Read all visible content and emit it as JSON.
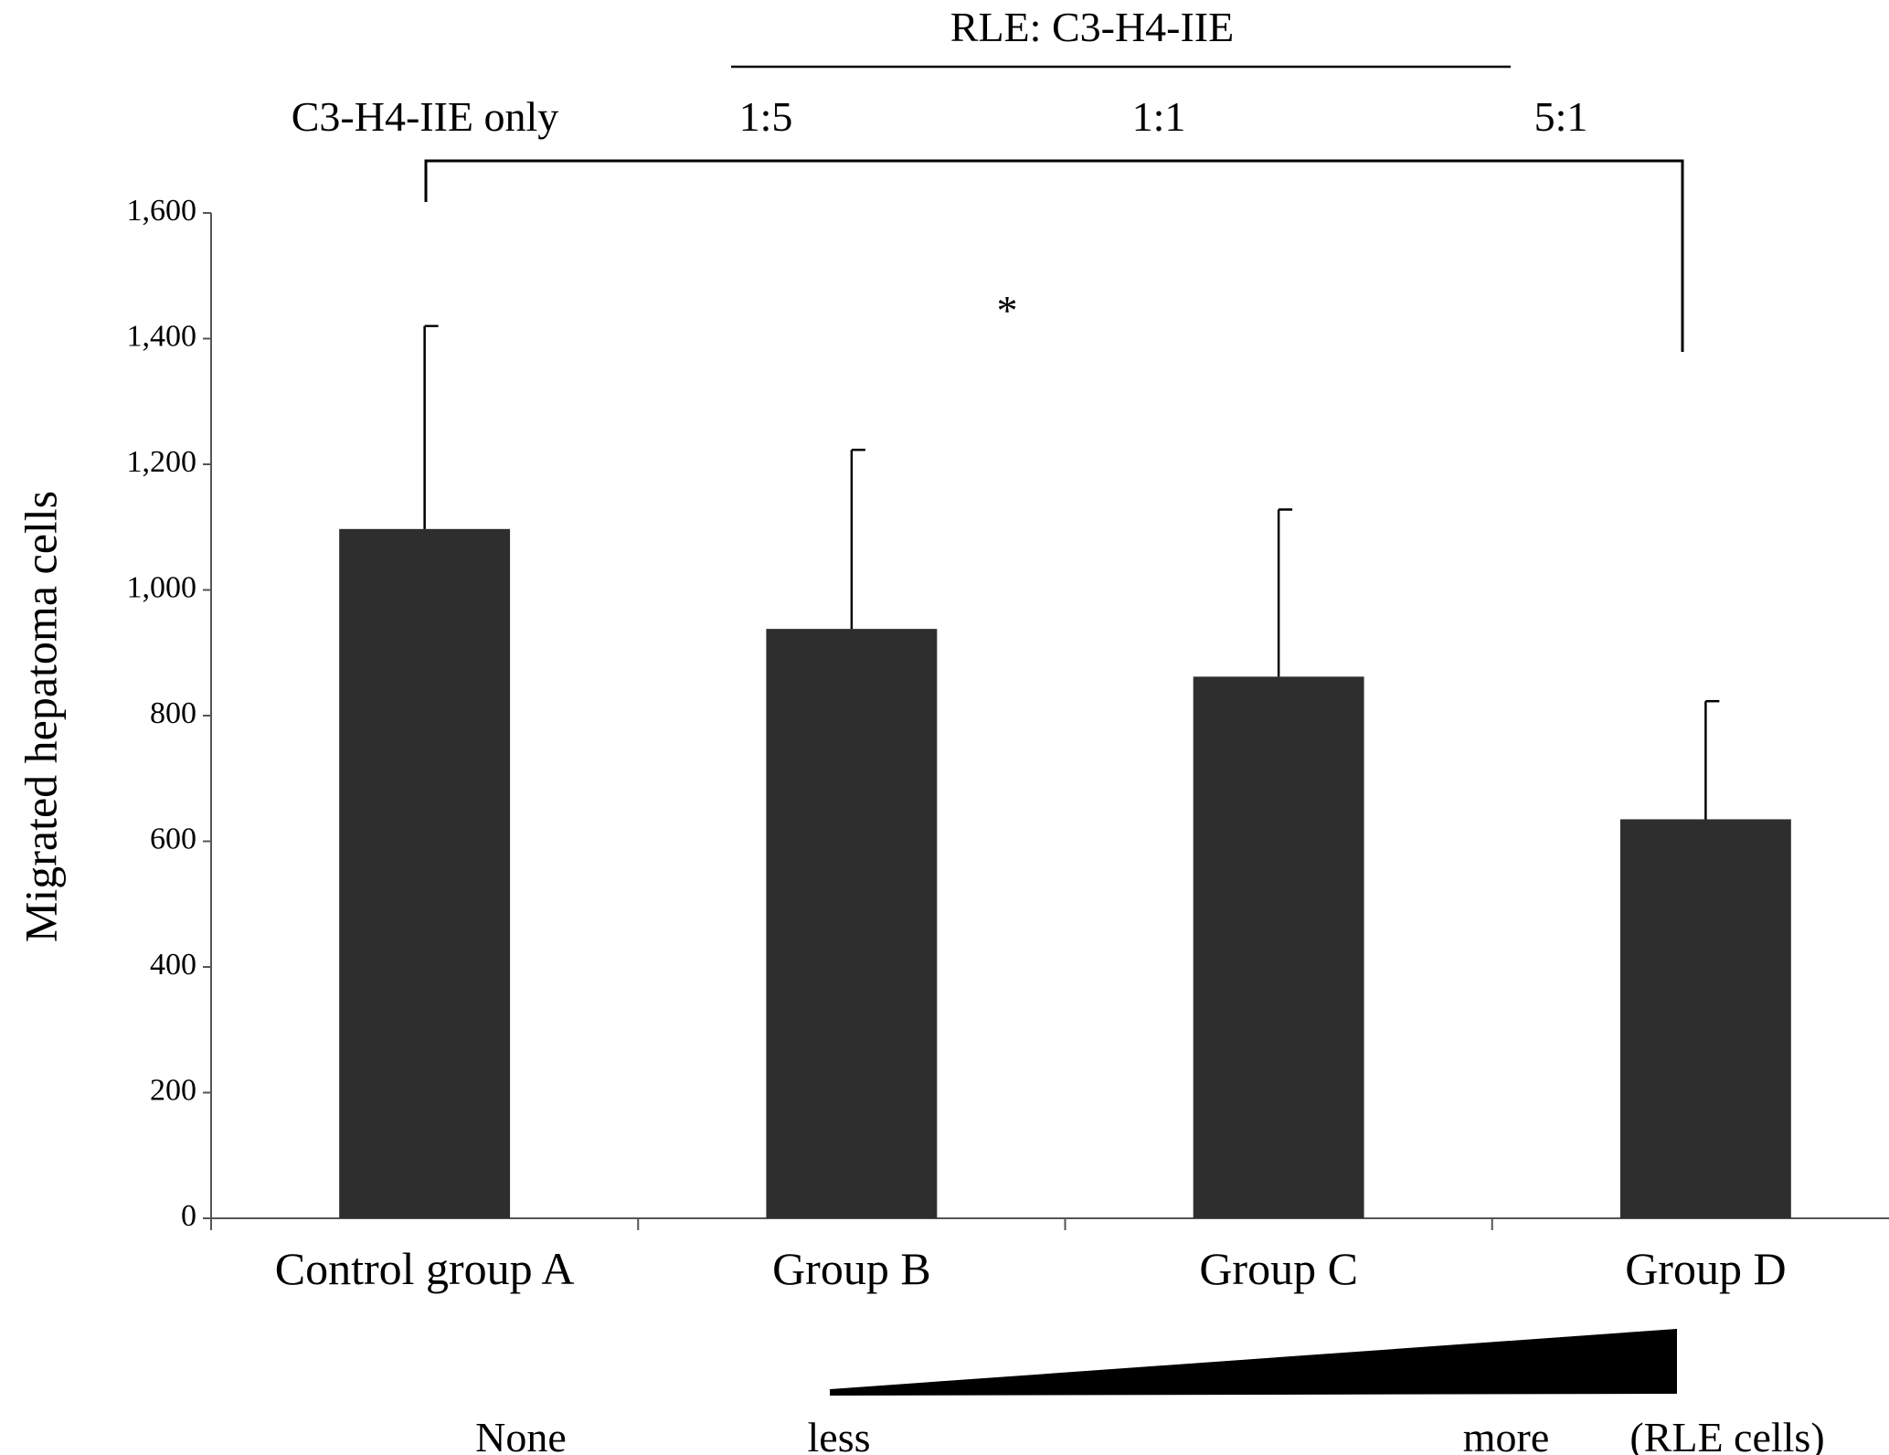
{
  "chart_data": {
    "type": "bar",
    "categories": [
      "Control  group A",
      "Group B",
      "Group C",
      "Group D"
    ],
    "values": [
      1097,
      938,
      862,
      635
    ],
    "error_upper": [
      1420,
      1223,
      1128,
      823
    ],
    "ylabel": "Migrated hepatoma cells",
    "ylim": [
      0,
      1600
    ],
    "y_ticks": [
      0,
      200,
      400,
      600,
      800,
      1000,
      1200,
      1400,
      1600
    ],
    "y_tick_labels": [
      "0",
      "200",
      "400",
      "600",
      "800",
      "1,000",
      "1,200",
      "1,400",
      "1,600"
    ],
    "bar_color": "#2e2e2e",
    "grid": false,
    "header": {
      "ratio_title": "RLE: C3-H4-IIE",
      "group_a_note": "C3-H4-IIE only",
      "ratios": [
        "1:5",
        "1:1",
        "5:1"
      ]
    },
    "significance": "*",
    "footer": {
      "none_label": "None",
      "less_label": "less",
      "more_label": "more",
      "unit_label": "(RLE cells)"
    }
  }
}
